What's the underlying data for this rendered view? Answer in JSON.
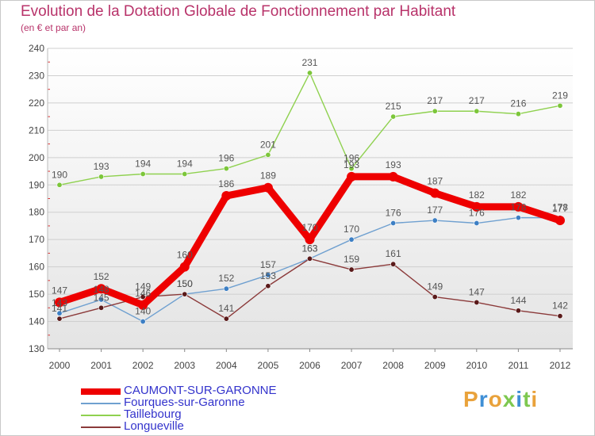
{
  "title": "Evolution de la Dotation Globale de Fonctionnement par Habitant",
  "subtitle": "(en € et par an)",
  "logo": "Proxiti",
  "chart_data": {
    "type": "line",
    "title": "Evolution de la Dotation Globale de Fonctionnement par Habitant",
    "subtitle": "(en € et par an)",
    "xlabel": "",
    "ylabel": "",
    "ylim": [
      130,
      240
    ],
    "yticks": [
      130,
      140,
      150,
      160,
      170,
      180,
      190,
      200,
      210,
      220,
      230,
      240
    ],
    "categories": [
      "2000",
      "2001",
      "2002",
      "2003",
      "2004",
      "2005",
      "2006",
      "2007",
      "2008",
      "2009",
      "2010",
      "2011",
      "2012"
    ],
    "legend_position": "bottom-left",
    "series": [
      {
        "name": "Taillebourg",
        "color": "#8fd14f",
        "marker": "#7cc63a",
        "emphasis": false,
        "values": [
          190,
          193,
          194,
          194,
          196,
          201,
          231,
          196,
          215,
          217,
          217,
          216,
          219
        ]
      },
      {
        "name": "Fourques-sur-Garonne",
        "color": "#6fa0d0",
        "marker": "#3d7fc4",
        "emphasis": false,
        "values": [
          143,
          148,
          140,
          150,
          152,
          157,
          163,
          170,
          176,
          177,
          176,
          178,
          178
        ]
      },
      {
        "name": "Longueville",
        "color": "#8b3a3a",
        "marker": "#5a1a1a",
        "emphasis": false,
        "values": [
          141,
          145,
          149,
          150,
          141,
          153,
          163,
          159,
          161,
          149,
          147,
          144,
          142
        ]
      },
      {
        "name": "CAUMONT-SUR-GARONNE",
        "color": "#ee0000",
        "marker": "#ee0000",
        "emphasis": true,
        "values": [
          147,
          152,
          146,
          160,
          186,
          189,
          170,
          193,
          193,
          187,
          182,
          182,
          177
        ]
      }
    ]
  },
  "legend": [
    {
      "label": "CAUMONT-SUR-GARONNE",
      "color": "#ee0000"
    },
    {
      "label": "Fourques-sur-Garonne",
      "color": "#6fa0d0"
    },
    {
      "label": "Taillebourg",
      "color": "#8fd14f"
    },
    {
      "label": "Longueville",
      "color": "#8b3a3a"
    }
  ]
}
